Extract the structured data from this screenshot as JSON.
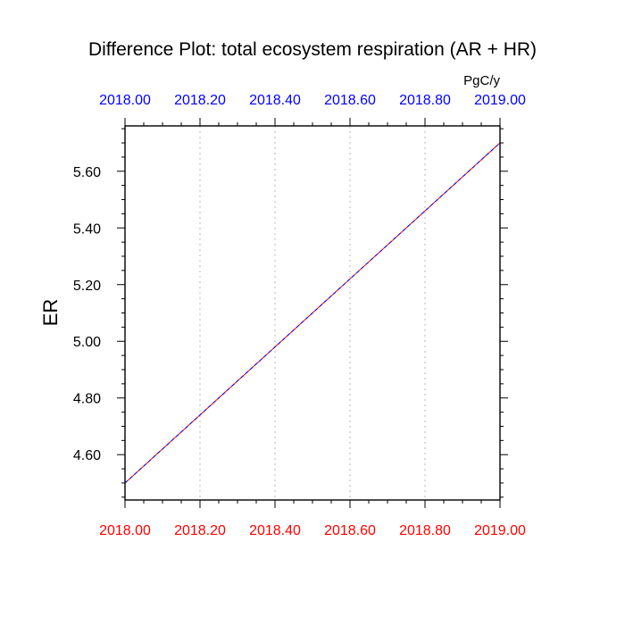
{
  "chart_data": {
    "type": "line",
    "title": "Difference Plot: total ecosystem respiration (AR + HR)",
    "units": "PgC/y",
    "ylabel": "ER",
    "xlabel": "",
    "xlim": [
      2018.0,
      2019.0
    ],
    "ylim": [
      4.44,
      5.76
    ],
    "x_ticks": [
      2018.0,
      2018.2,
      2018.4,
      2018.6,
      2018.8,
      2019.0
    ],
    "x_tick_labels_bottom": [
      "2018.00",
      "2018.20",
      "2018.40",
      "2018.60",
      "2018.80",
      "2019.00"
    ],
    "x_tick_labels_top": [
      "2018.00",
      "2018.20",
      "2018.40",
      "2018.60",
      "2018.80",
      "2019.00"
    ],
    "y_ticks": [
      4.6,
      4.8,
      5.0,
      5.2,
      5.4,
      5.6
    ],
    "y_tick_labels": [
      "4.60",
      "4.80",
      "5.00",
      "5.20",
      "5.40",
      "5.60"
    ],
    "grid": "vertical dotted",
    "series": [
      {
        "x": [
          2018.0,
          2019.0
        ],
        "values": [
          4.5,
          5.7
        ],
        "color": "#ff0000",
        "style": "solid"
      },
      {
        "x": [
          2018.0,
          2019.0
        ],
        "values": [
          4.5,
          5.7
        ],
        "color": "#0000ff",
        "style": "dashed"
      }
    ],
    "colors": {
      "bottom_tick_labels": "#ff0000",
      "top_tick_labels": "#0000ff",
      "grid": "#c8c8c8",
      "axis": "#000000"
    }
  }
}
